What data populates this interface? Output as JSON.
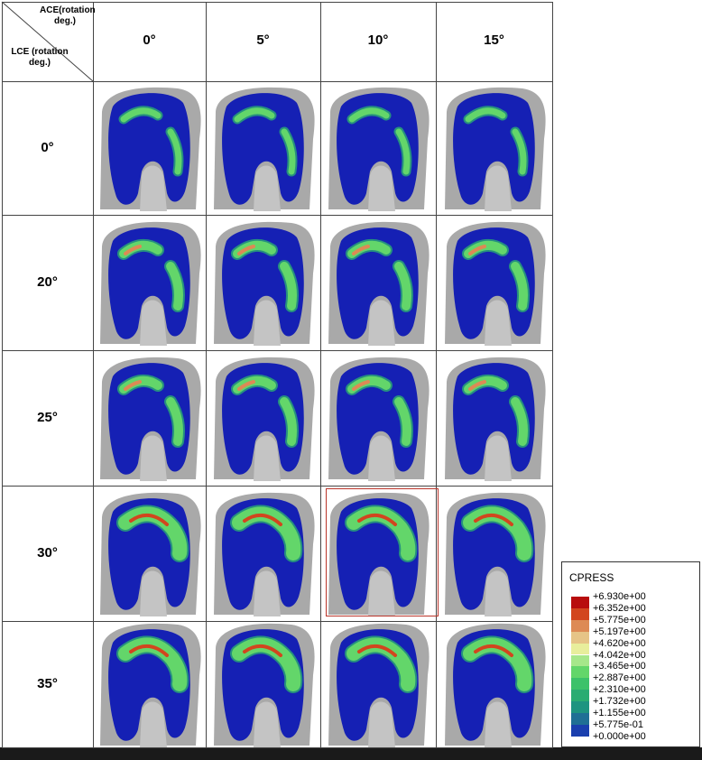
{
  "table": {
    "corner": {
      "column_header": "ACE(rotation deg.)",
      "row_header": "LCE (rotation deg.)"
    },
    "columns": [
      "0°",
      "5°",
      "10°",
      "15°"
    ],
    "rows": [
      "0°",
      "20°",
      "25°",
      "30°",
      "35°"
    ]
  },
  "legend": {
    "title": "CPRESS",
    "levels": [
      "+6.930e+00",
      "+6.352e+00",
      "+5.775e+00",
      "+5.197e+00",
      "+4.620e+00",
      "+4.042e+00",
      "+3.465e+00",
      "+2.887e+00",
      "+2.310e+00",
      "+1.732e+00",
      "+1.155e+00",
      "+5.775e-01",
      "+0.000e+00"
    ],
    "colors": [
      "#b80d0d",
      "#d2461e",
      "#dd8a55",
      "#e6c487",
      "#e8ee9c",
      "#a6e78a",
      "#63d66a",
      "#3cc26a",
      "#2aac72",
      "#1e9480",
      "#1f6f95",
      "#1a3fae",
      "#1520b4"
    ]
  }
}
